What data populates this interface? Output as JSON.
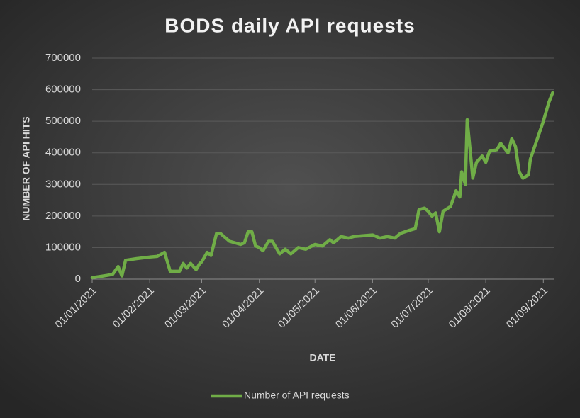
{
  "chart_data": {
    "type": "line",
    "title": "BODS daily API requests",
    "x_label": "DATE",
    "y_label": "NUMBER OF API HITS",
    "x": [
      "01/01/2021",
      "05/01/2021",
      "09/01/2021",
      "12/01/2021",
      "15/01/2021",
      "17/01/2021",
      "19/01/2021",
      "25/01/2021",
      "01/02/2021",
      "05/02/2021",
      "09/02/2021",
      "12/02/2021",
      "17/02/2021",
      "19/02/2021",
      "21/02/2021",
      "23/02/2021",
      "26/02/2021",
      "28/02/2021",
      "01/03/2021",
      "04/03/2021",
      "06/03/2021",
      "09/03/2021",
      "11/03/2021",
      "13/03/2021",
      "16/03/2021",
      "22/03/2021",
      "24/03/2021",
      "26/03/2021",
      "28/03/2021",
      "30/03/2021",
      "01/04/2021",
      "03/04/2021",
      "06/04/2021",
      "08/04/2021",
      "12/04/2021",
      "15/04/2021",
      "18/04/2021",
      "22/04/2021",
      "26/04/2021",
      "01/05/2021",
      "05/05/2021",
      "09/05/2021",
      "11/05/2021",
      "15/05/2021",
      "19/05/2021",
      "22/05/2021",
      "01/06/2021",
      "05/06/2021",
      "09/06/2021",
      "13/06/2021",
      "16/06/2021",
      "21/06/2021",
      "24/06/2021",
      "26/06/2021",
      "29/06/2021",
      "01/07/2021",
      "03/07/2021",
      "05/07/2021",
      "07/07/2021",
      "09/07/2021",
      "13/07/2021",
      "16/07/2021",
      "18/07/2021",
      "19/07/2021",
      "21/07/2021",
      "22/07/2021",
      "25/07/2021",
      "27/07/2021",
      "30/07/2021",
      "01/08/2021",
      "03/08/2021",
      "07/08/2021",
      "09/08/2021",
      "11/08/2021",
      "13/08/2021",
      "15/08/2021",
      "17/08/2021",
      "19/08/2021",
      "21/08/2021",
      "24/08/2021",
      "25/08/2021",
      "01/09/2021",
      "04/09/2021",
      "06/09/2021"
    ],
    "series": [
      {
        "name": "Number of API requests",
        "color": "#70ad47",
        "values": [
          5000,
          8000,
          12000,
          15000,
          40000,
          10000,
          60000,
          65000,
          70000,
          72000,
          85000,
          25000,
          25000,
          50000,
          35000,
          50000,
          30000,
          50000,
          55000,
          85000,
          75000,
          145000,
          145000,
          135000,
          120000,
          110000,
          115000,
          150000,
          150000,
          105000,
          100000,
          90000,
          120000,
          120000,
          80000,
          95000,
          80000,
          100000,
          95000,
          110000,
          105000,
          125000,
          115000,
          135000,
          130000,
          135000,
          140000,
          130000,
          135000,
          130000,
          145000,
          155000,
          160000,
          220000,
          225000,
          215000,
          200000,
          210000,
          150000,
          215000,
          230000,
          280000,
          260000,
          340000,
          300000,
          505000,
          320000,
          370000,
          390000,
          370000,
          405000,
          410000,
          430000,
          415000,
          400000,
          445000,
          420000,
          340000,
          320000,
          330000,
          380000,
          500000,
          560000,
          590000
        ]
      }
    ],
    "xlim": [
      "01/01/2021",
      "07/09/2021"
    ],
    "xticks": [
      "01/01/2021",
      "01/02/2021",
      "01/03/2021",
      "01/04/2021",
      "01/05/2021",
      "01/06/2021",
      "01/07/2021",
      "01/08/2021",
      "01/09/2021"
    ],
    "ylim": [
      0,
      700000
    ],
    "yticks": [
      0,
      100000,
      200000,
      300000,
      400000,
      500000,
      600000,
      700000
    ],
    "grid": true,
    "legend": "bottom"
  }
}
